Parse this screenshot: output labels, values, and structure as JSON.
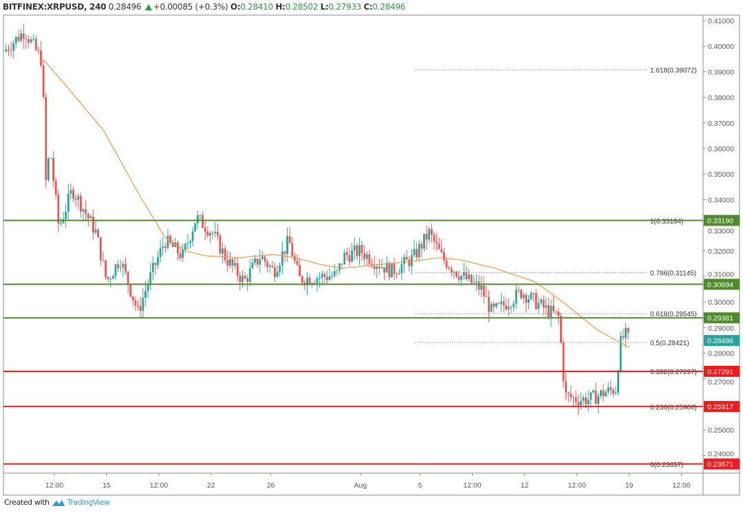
{
  "header": {
    "symbol": "BITFINEX:XRPUSD, 240",
    "last": "0.28496",
    "change": "+0.00085 (+0.3%)",
    "o_label": "O:",
    "o": "0.28410",
    "h_label": "H:",
    "h": "0.28502",
    "l_label": "L:",
    "l": "0.27933",
    "c_label": "C:",
    "c": "0.28496"
  },
  "footer": {
    "created_with": "Created with",
    "brand": "TradingView"
  },
  "colors": {
    "up": "#26a69a",
    "down": "#ef5350",
    "ma": "#f7953d",
    "support_green": "#4f8a2b",
    "resistance_red": "#f21b1b",
    "last_price": "#26a69a"
  },
  "chart_data": {
    "type": "candlestick",
    "symbol": "XRPUSD",
    "interval": "240",
    "price_ticks": [
      "0.41000",
      "0.40000",
      "0.39000",
      "0.38000",
      "0.37000",
      "0.36000",
      "0.35000",
      "0.34000",
      "0.33000",
      "0.32000",
      "0.31000",
      "0.30000",
      "0.29000",
      "0.28000",
      "0.27000",
      "0.25000",
      "0.24000"
    ],
    "time_ticks": [
      {
        "label": "12:00",
        "day": 11.5
      },
      {
        "label": "15",
        "day": 15
      },
      {
        "label": "12:00",
        "day": 18.5
      },
      {
        "label": "22",
        "day": 22
      },
      {
        "label": "26",
        "day": 26
      },
      {
        "label": "Aug",
        "day": 32
      },
      {
        "label": "5",
        "day": 36
      },
      {
        "label": "12:00",
        "day": 39.5
      },
      {
        "label": "12",
        "day": 43
      },
      {
        "label": "12:00",
        "day": 46.5
      },
      {
        "label": "19",
        "day": 50
      },
      {
        "label": "12:00",
        "day": 53.5
      }
    ],
    "price_path": [
      [
        8.1,
        0.3979
      ],
      [
        9.5,
        0.406
      ],
      [
        10.7,
        0.394
      ],
      [
        10.9,
        0.3455
      ],
      [
        11.2,
        0.36
      ],
      [
        11.8,
        0.329
      ],
      [
        12.7,
        0.344
      ],
      [
        13.4,
        0.337
      ],
      [
        14.3,
        0.327
      ],
      [
        15,
        0.308
      ],
      [
        15.9,
        0.317
      ],
      [
        17.1,
        0.296
      ],
      [
        17.8,
        0.308
      ],
      [
        18.9,
        0.324
      ],
      [
        20.1,
        0.318
      ],
      [
        21,
        0.333
      ],
      [
        22.1,
        0.327
      ],
      [
        23,
        0.317
      ],
      [
        24.2,
        0.308
      ],
      [
        25.3,
        0.318
      ],
      [
        26.2,
        0.312
      ],
      [
        27.2,
        0.324
      ],
      [
        27.9,
        0.309
      ],
      [
        30.4,
        0.3105
      ],
      [
        30.9,
        0.318
      ],
      [
        32,
        0.32
      ],
      [
        32.9,
        0.316
      ],
      [
        34.1,
        0.312
      ],
      [
        35.5,
        0.317
      ],
      [
        36.6,
        0.327
      ],
      [
        37.5,
        0.317
      ],
      [
        38.7,
        0.3105
      ],
      [
        40.1,
        0.305
      ],
      [
        40.8,
        0.296
      ],
      [
        41.4,
        0.298
      ],
      [
        42.8,
        0.304
      ],
      [
        44.2,
        0.298
      ],
      [
        45.3,
        0.294
      ],
      [
        45.7,
        0.2635
      ],
      [
        46.5,
        0.262
      ],
      [
        47.4,
        0.262
      ],
      [
        48.3,
        0.2645
      ],
      [
        49.1,
        0.266
      ],
      [
        49.4,
        0.2835
      ],
      [
        49.7,
        0.2875
      ],
      [
        50,
        0.28496
      ]
    ],
    "moving_average": [
      [
        10.7,
        0.3952
      ],
      [
        12.5,
        0.3831
      ],
      [
        14.8,
        0.367
      ],
      [
        17.1,
        0.3428
      ],
      [
        18.9,
        0.3253
      ],
      [
        20.3,
        0.32
      ],
      [
        21.6,
        0.3181
      ],
      [
        23.9,
        0.3173
      ],
      [
        26.2,
        0.3186
      ],
      [
        27.6,
        0.3173
      ],
      [
        29.4,
        0.3146
      ],
      [
        30.8,
        0.3132
      ],
      [
        33.1,
        0.3146
      ],
      [
        35.4,
        0.3159
      ],
      [
        37.3,
        0.3173
      ],
      [
        38.7,
        0.3165
      ],
      [
        41,
        0.3132
      ],
      [
        43.7,
        0.3079
      ],
      [
        45.6,
        0.2998
      ],
      [
        47.9,
        0.289
      ],
      [
        50,
        0.2823
      ]
    ],
    "fibonacci": [
      {
        "label": "1.618(0.39072)",
        "price": 0.39072
      },
      {
        "label": "1(0.33184)",
        "price": 0.33184
      },
      {
        "label": "0.786(0.31145)",
        "price": 0.31145
      },
      {
        "label": "0.618(0.29545)",
        "price": 0.29545
      },
      {
        "label": "0.5(0.28421)",
        "price": 0.28421
      },
      {
        "label": "0.382(0.27297)",
        "price": 0.27297
      },
      {
        "label": "0.236(0.25906)",
        "price": 0.25906
      },
      {
        "label": "0(0.23657)",
        "price": 0.23657
      }
    ],
    "horizontal_levels": [
      {
        "label": "0.33190",
        "price": 0.3319,
        "kind": "green"
      },
      {
        "label": "0.30694",
        "price": 0.30694,
        "kind": "green"
      },
      {
        "label": "0.29381",
        "price": 0.29381,
        "kind": "green"
      },
      {
        "label": "0.27291",
        "price": 0.27291,
        "kind": "red"
      },
      {
        "label": "0.25917",
        "price": 0.25917,
        "kind": "red"
      },
      {
        "label": "0.23671",
        "price": 0.23671,
        "kind": "red"
      }
    ],
    "last_price": {
      "label": "0.28496",
      "price": 0.28496
    }
  }
}
